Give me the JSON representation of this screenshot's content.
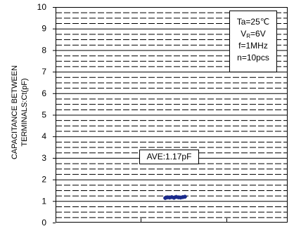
{
  "chart_data": {
    "type": "scatter",
    "title": "",
    "xlabel": "",
    "ylabel_line1": "CAPACITANCE BETWEEN",
    "ylabel_line2": "TERMINALS:Ct(pF)",
    "ylim": [
      0,
      10
    ],
    "yticks": [
      0,
      1,
      2,
      3,
      4,
      5,
      6,
      7,
      8,
      9,
      10
    ],
    "ytick_labels": [
      "0",
      "1",
      "2",
      "3",
      "4",
      "5",
      "6",
      "7",
      "8",
      "9",
      "10"
    ],
    "minor_grid_step": 0.25,
    "grid": true,
    "points": [
      {
        "x": 1,
        "y": 1.14
      },
      {
        "x": 2,
        "y": 1.17
      },
      {
        "x": 3,
        "y": 1.16
      },
      {
        "x": 4,
        "y": 1.18
      },
      {
        "x": 5,
        "y": 1.15
      },
      {
        "x": 6,
        "y": 1.19
      },
      {
        "x": 7,
        "y": 1.17
      },
      {
        "x": 8,
        "y": 1.16
      },
      {
        "x": 9,
        "y": 1.18
      },
      {
        "x": 10,
        "y": 1.2
      }
    ],
    "marker_color": "#1a2a8c",
    "conditions": {
      "ta": "Ta=25℃",
      "vr_prefix": "V",
      "vr_sub": "R",
      "vr_value": "=6V",
      "freq": "f=1MHz",
      "n": "n=10pcs"
    },
    "annotation": "AVE:1.17pF"
  }
}
